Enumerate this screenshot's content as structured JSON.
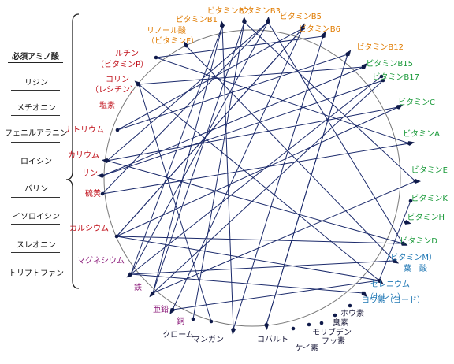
{
  "amino_acids": {
    "title": "必須アミノ酸",
    "items": [
      "リジン",
      "メチオニン",
      "フェニルアラニン",
      "ロイシン",
      "バリン",
      "イソロイシン",
      "スレオニン",
      "トリプトファン"
    ]
  },
  "colors": {
    "orange": "#e07b00",
    "green": "#1a9a3a",
    "blue": "#1f77b4",
    "red": "#c0101a",
    "purple": "#8b1a7a",
    "dark": "#1a1a3a",
    "line": "#1b2a6b",
    "circle": "#666666"
  },
  "nutrients": [
    {
      "label": "ビタミンB2",
      "color": "orange"
    },
    {
      "label": "ビタミンB3",
      "color": "orange"
    },
    {
      "label": "ビタミンB5",
      "color": "orange"
    },
    {
      "label": "ビタミンB6",
      "color": "orange"
    },
    {
      "label": "ビタミンB12",
      "color": "orange"
    },
    {
      "label": "ビタミンB15",
      "color": "green"
    },
    {
      "label": "ビタミンB17",
      "color": "green"
    },
    {
      "label": "ビタミンC",
      "color": "green"
    },
    {
      "label": "ビタミンA",
      "color": "green"
    },
    {
      "label": "ビタミンE",
      "color": "green"
    },
    {
      "label": "ビタミンK",
      "color": "green"
    },
    {
      "label": "ビタミンH",
      "color": "green"
    },
    {
      "label": "ビタミンD",
      "color": "green"
    },
    {
      "label": "（ビタミンM）",
      "color": "blue"
    },
    {
      "label": "葉　酸",
      "color": "blue"
    },
    {
      "label": "セレニウム",
      "color": "blue"
    },
    {
      "label": "（セレン）",
      "color": "blue"
    },
    {
      "label": "ヨウ素（ヨード）",
      "color": "blue"
    },
    {
      "label": "ホウ素",
      "color": "dark"
    },
    {
      "label": "臭素",
      "color": "dark"
    },
    {
      "label": "モリブデン",
      "color": "dark"
    },
    {
      "label": "フッ素",
      "color": "dark"
    },
    {
      "label": "ケイ素",
      "color": "dark"
    },
    {
      "label": "コバルト",
      "color": "dark"
    },
    {
      "label": "マンガン",
      "color": "dark"
    },
    {
      "label": "クローム",
      "color": "dark"
    },
    {
      "label": "銅",
      "color": "purple"
    },
    {
      "label": "亜鉛",
      "color": "purple"
    },
    {
      "label": "鉄",
      "color": "purple"
    },
    {
      "label": "マグネシウム",
      "color": "purple"
    },
    {
      "label": "カルシウム",
      "color": "red"
    },
    {
      "label": "硫黄",
      "color": "red"
    },
    {
      "label": "リン",
      "color": "red"
    },
    {
      "label": "カリウム",
      "color": "red"
    },
    {
      "label": "ナトリウム",
      "color": "red"
    },
    {
      "label": "塩素",
      "color": "red"
    },
    {
      "label": "コリン",
      "color": "red"
    },
    {
      "label": "（レシチン）",
      "color": "red"
    },
    {
      "label": "ルチン",
      "color": "red"
    },
    {
      "label": "（ビタミンP）",
      "color": "red"
    },
    {
      "label": "リノール酸",
      "color": "orange"
    },
    {
      "label": "（ビタミンF）",
      "color": "orange"
    },
    {
      "label": "ビタミンB1",
      "color": "orange"
    }
  ]
}
